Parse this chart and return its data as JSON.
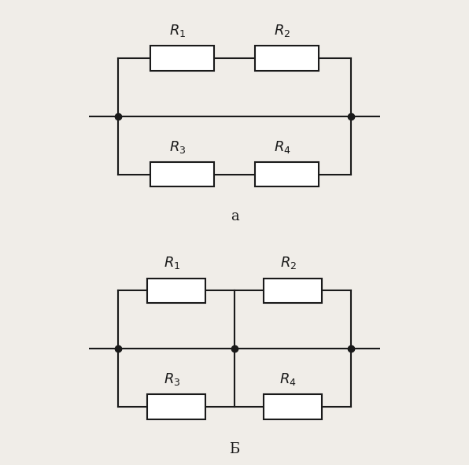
{
  "bg_color": "#f0ede8",
  "line_color": "#1a1a1a",
  "line_width": 1.5,
  "label_a": "a",
  "label_b": "Б",
  "font_size_label": 13,
  "font_size_R": 13
}
